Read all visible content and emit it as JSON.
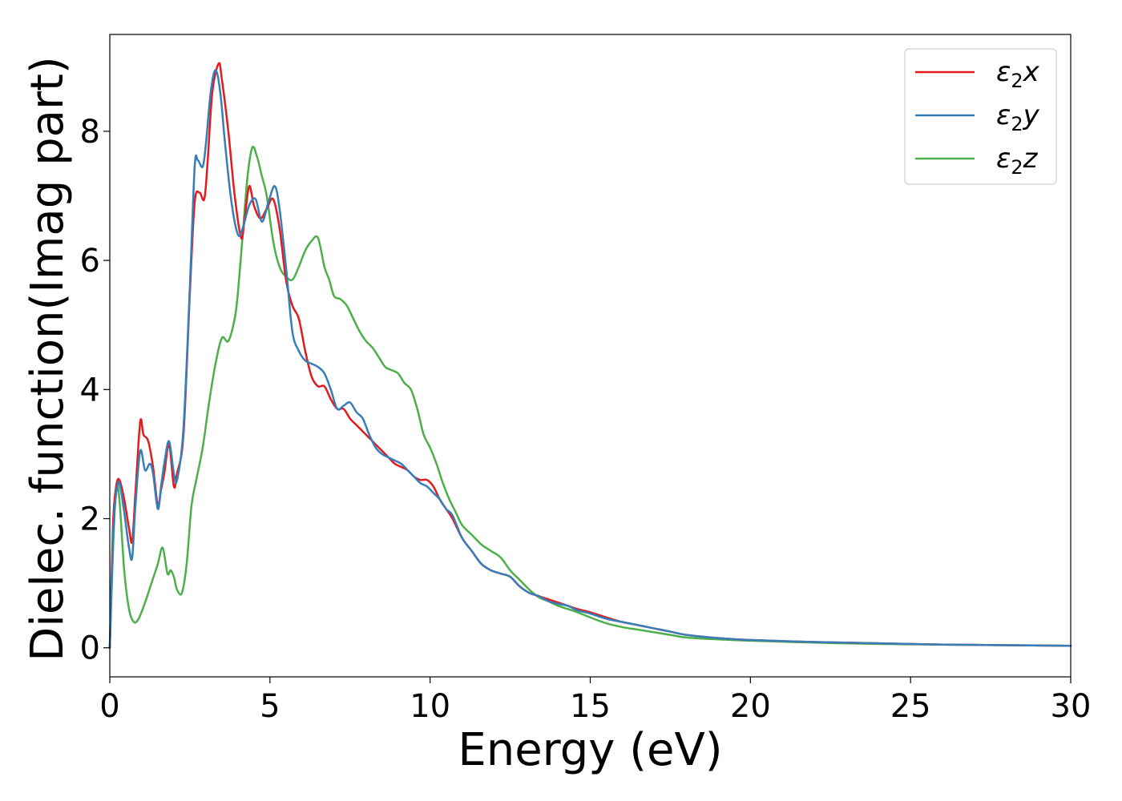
{
  "chart_data": {
    "type": "line",
    "xlabel": "Energy (eV)",
    "ylabel": "Dielec. function(Imag part)",
    "xlim": [
      0,
      30
    ],
    "ylim": [
      -0.45,
      9.5
    ],
    "xticks": [
      0,
      5,
      10,
      15,
      20,
      25,
      30
    ],
    "yticks": [
      0,
      2,
      4,
      6,
      8
    ],
    "grid": false,
    "legend_position": "top-right",
    "series": [
      {
        "name": "ε₂x",
        "legend_base": "ε",
        "legend_sub": "2",
        "legend_suffix": "x",
        "color": "#e41a1c",
        "x": [
          0,
          0.1,
          0.2,
          0.3,
          0.45,
          0.6,
          0.7,
          0.8,
          0.95,
          1.05,
          1.2,
          1.35,
          1.5,
          1.6,
          1.7,
          1.85,
          2.0,
          2.1,
          2.3,
          2.5,
          2.65,
          2.8,
          2.95,
          3.05,
          3.2,
          3.4,
          3.5,
          3.7,
          3.9,
          4.1,
          4.2,
          4.35,
          4.5,
          4.7,
          4.9,
          5.1,
          5.3,
          5.5,
          5.7,
          5.9,
          6.1,
          6.3,
          6.5,
          6.7,
          6.9,
          7.1,
          7.3,
          7.5,
          7.7,
          7.9,
          8.1,
          8.3,
          8.5,
          8.7,
          8.9,
          9.1,
          9.3,
          9.5,
          9.7,
          9.9,
          10.1,
          10.3,
          10.5,
          10.7,
          11.0,
          11.3,
          11.6,
          11.9,
          12.2,
          12.5,
          12.8,
          13.1,
          13.4,
          13.7,
          14.0,
          14.3,
          14.6,
          15.0,
          15.5,
          16.0,
          16.5,
          17.0,
          17.5,
          18.0,
          19.0,
          20.0,
          22.0,
          24.0,
          26.0,
          28.0,
          30.0
        ],
        "y": [
          0.0,
          1.9,
          2.5,
          2.6,
          2.3,
          1.85,
          1.65,
          2.4,
          3.5,
          3.3,
          3.2,
          2.8,
          2.2,
          2.45,
          2.7,
          3.15,
          2.5,
          2.7,
          3.3,
          5.5,
          6.9,
          7.05,
          6.95,
          7.5,
          8.6,
          9.05,
          8.8,
          8.0,
          7.0,
          6.35,
          6.6,
          7.15,
          6.85,
          6.65,
          6.8,
          6.95,
          6.5,
          5.7,
          5.3,
          5.1,
          4.6,
          4.2,
          4.05,
          4.05,
          3.85,
          3.7,
          3.7,
          3.55,
          3.45,
          3.35,
          3.25,
          3.15,
          3.05,
          2.95,
          2.85,
          2.8,
          2.75,
          2.65,
          2.6,
          2.6,
          2.5,
          2.3,
          2.15,
          2.0,
          1.7,
          1.5,
          1.3,
          1.2,
          1.15,
          1.1,
          0.95,
          0.85,
          0.8,
          0.75,
          0.7,
          0.65,
          0.6,
          0.55,
          0.47,
          0.4,
          0.35,
          0.3,
          0.25,
          0.2,
          0.15,
          0.12,
          0.09,
          0.07,
          0.05,
          0.04,
          0.03
        ]
      },
      {
        "name": "ε₂y",
        "legend_base": "ε",
        "legend_sub": "2",
        "legend_suffix": "y",
        "color": "#377eb8",
        "x": [
          0,
          0.1,
          0.2,
          0.3,
          0.45,
          0.6,
          0.7,
          0.8,
          0.95,
          1.1,
          1.25,
          1.35,
          1.5,
          1.6,
          1.7,
          1.85,
          2.0,
          2.1,
          2.3,
          2.5,
          2.65,
          2.75,
          2.9,
          3.0,
          3.15,
          3.3,
          3.45,
          3.6,
          3.8,
          4.0,
          4.15,
          4.35,
          4.55,
          4.75,
          4.95,
          5.15,
          5.3,
          5.5,
          5.7,
          5.9,
          6.1,
          6.3,
          6.5,
          6.7,
          6.9,
          7.1,
          7.3,
          7.5,
          7.7,
          7.9,
          8.1,
          8.3,
          8.5,
          8.7,
          8.9,
          9.1,
          9.3,
          9.5,
          9.7,
          9.9,
          10.1,
          10.3,
          10.5,
          10.7,
          11.0,
          11.3,
          11.6,
          11.9,
          12.2,
          12.5,
          12.8,
          13.1,
          13.4,
          13.7,
          14.0,
          14.3,
          14.6,
          15.0,
          15.5,
          16.0,
          16.5,
          17.0,
          17.5,
          18.0,
          19.0,
          20.0,
          22.0,
          24.0,
          26.0,
          28.0,
          30.0
        ],
        "y": [
          0.0,
          1.7,
          2.4,
          2.55,
          2.1,
          1.55,
          1.4,
          2.2,
          3.05,
          2.75,
          2.85,
          2.7,
          2.15,
          2.5,
          2.85,
          3.2,
          2.7,
          2.6,
          3.4,
          5.6,
          7.45,
          7.55,
          7.45,
          7.8,
          8.6,
          8.95,
          8.6,
          7.8,
          6.9,
          6.4,
          6.5,
          6.85,
          6.95,
          6.6,
          6.9,
          7.15,
          6.8,
          5.9,
          4.9,
          4.6,
          4.45,
          4.4,
          4.35,
          4.25,
          4.0,
          3.7,
          3.75,
          3.8,
          3.65,
          3.55,
          3.3,
          3.1,
          3.0,
          2.95,
          2.9,
          2.85,
          2.75,
          2.65,
          2.55,
          2.5,
          2.4,
          2.3,
          2.15,
          2.05,
          1.7,
          1.5,
          1.3,
          1.2,
          1.15,
          1.1,
          0.95,
          0.85,
          0.8,
          0.72,
          0.68,
          0.65,
          0.58,
          0.53,
          0.45,
          0.4,
          0.35,
          0.3,
          0.25,
          0.2,
          0.15,
          0.12,
          0.09,
          0.07,
          0.05,
          0.04,
          0.03
        ]
      },
      {
        "name": "ε₂z",
        "legend_base": "ε",
        "legend_sub": "2",
        "legend_suffix": "z",
        "color": "#4daf4a",
        "x": [
          0,
          0.1,
          0.2,
          0.3,
          0.45,
          0.6,
          0.75,
          0.9,
          1.1,
          1.3,
          1.5,
          1.65,
          1.8,
          1.9,
          2.0,
          2.1,
          2.25,
          2.4,
          2.55,
          2.7,
          2.9,
          3.1,
          3.3,
          3.5,
          3.7,
          3.9,
          4.0,
          4.15,
          4.3,
          4.45,
          4.6,
          4.75,
          4.9,
          5.1,
          5.3,
          5.5,
          5.7,
          5.9,
          6.1,
          6.3,
          6.5,
          6.7,
          6.85,
          7.0,
          7.2,
          7.4,
          7.6,
          7.8,
          8.0,
          8.2,
          8.4,
          8.6,
          8.8,
          9.0,
          9.2,
          9.4,
          9.6,
          9.8,
          10.0,
          10.2,
          10.4,
          10.6,
          10.8,
          11.0,
          11.3,
          11.6,
          11.9,
          12.2,
          12.5,
          12.8,
          13.1,
          13.4,
          13.7,
          14.0,
          14.3,
          14.6,
          15.0,
          15.5,
          16.0,
          16.5,
          17.0,
          17.5,
          18.0,
          19.0,
          20.0,
          22.0,
          24.0,
          26.0,
          28.0,
          30.0
        ],
        "y": [
          0.0,
          1.5,
          2.5,
          2.3,
          1.2,
          0.6,
          0.4,
          0.45,
          0.7,
          1.0,
          1.3,
          1.55,
          1.15,
          1.2,
          1.1,
          0.9,
          0.85,
          1.3,
          2.2,
          2.6,
          3.1,
          3.8,
          4.4,
          4.8,
          4.75,
          5.1,
          5.5,
          6.4,
          7.3,
          7.75,
          7.6,
          7.3,
          7.0,
          6.3,
          5.9,
          5.75,
          5.7,
          5.9,
          6.15,
          6.3,
          6.35,
          5.9,
          5.7,
          5.45,
          5.4,
          5.3,
          5.1,
          4.9,
          4.75,
          4.65,
          4.5,
          4.35,
          4.3,
          4.25,
          4.1,
          4.0,
          3.7,
          3.3,
          3.1,
          2.85,
          2.55,
          2.3,
          2.1,
          1.9,
          1.75,
          1.6,
          1.5,
          1.4,
          1.2,
          1.05,
          0.9,
          0.78,
          0.72,
          0.65,
          0.6,
          0.55,
          0.47,
          0.38,
          0.32,
          0.28,
          0.24,
          0.2,
          0.16,
          0.13,
          0.11,
          0.08,
          0.06,
          0.05,
          0.04,
          0.03
        ]
      }
    ]
  }
}
